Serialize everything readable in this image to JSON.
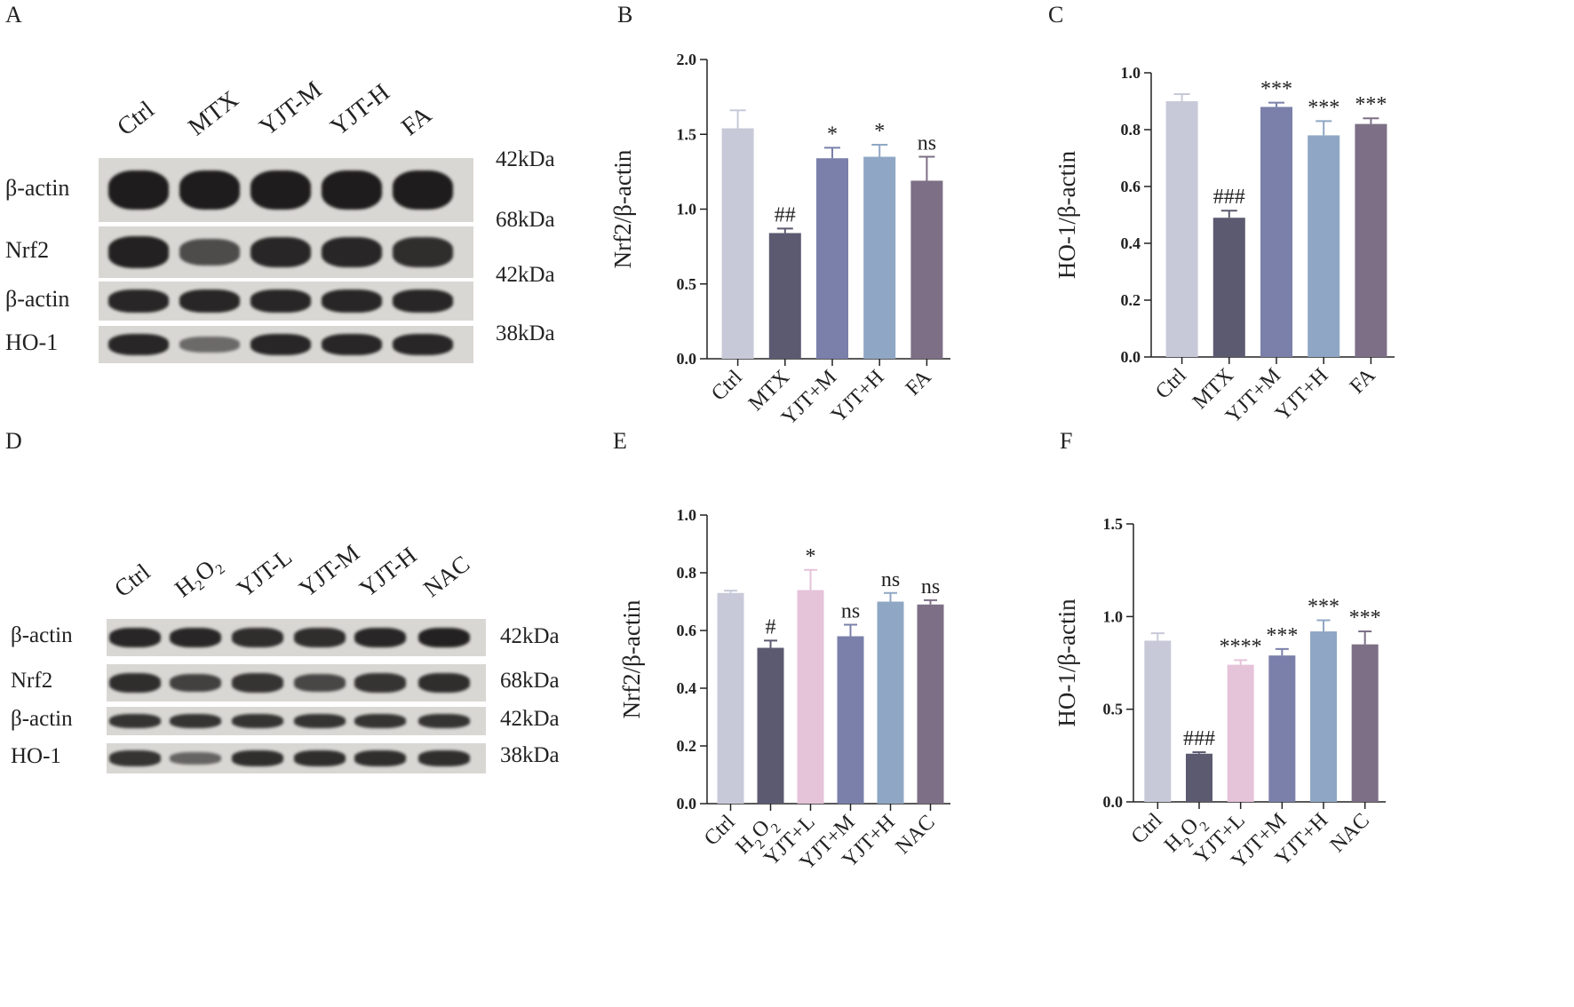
{
  "colors": {
    "ctrl": "#c8c9d8",
    "model": "#5c5a70",
    "yjt_l": "#e5c3d9",
    "yjt_m": "#7a80aa",
    "yjt_h": "#8fa7c4",
    "pos": "#7d6f86",
    "blot_bg": "#d9d7d3",
    "band": "#1e1c1c"
  },
  "panels": {
    "A": "A",
    "B": "B",
    "C": "C",
    "D": "D",
    "E": "E",
    "F": "F"
  },
  "blot_A": {
    "lanes": [
      "Ctrl",
      "MTX",
      "YJT-M",
      "YJT-H",
      "FA"
    ],
    "rows": [
      {
        "label": "β-actin",
        "kda": "42kDa",
        "intensity": [
          1,
          1,
          1,
          1,
          1
        ]
      },
      {
        "label": "Nrf2",
        "kda": "68kDa",
        "intensity": [
          0.95,
          0.6,
          0.9,
          0.9,
          0.85
        ]
      },
      {
        "label": "β-actin",
        "kda": "42kDa",
        "intensity": [
          0.9,
          0.9,
          0.9,
          0.9,
          0.9
        ]
      },
      {
        "label": "HO-1",
        "kda": "38kDa",
        "intensity": [
          0.9,
          0.35,
          0.9,
          0.9,
          0.9
        ]
      }
    ]
  },
  "blot_D": {
    "lanes": [
      "Ctrl",
      "H₂O₂",
      "YJT-L",
      "YJT-M",
      "YJT-H",
      "NAC"
    ],
    "rows": [
      {
        "label": "β-actin",
        "kda": "42kDa",
        "intensity": [
          0.9,
          0.9,
          0.85,
          0.85,
          0.9,
          0.95
        ]
      },
      {
        "label": "Nrf2",
        "kda": "68kDa",
        "intensity": [
          0.85,
          0.7,
          0.8,
          0.65,
          0.8,
          0.85
        ]
      },
      {
        "label": "β-actin",
        "kda": "42kDa",
        "intensity": [
          0.8,
          0.8,
          0.8,
          0.8,
          0.8,
          0.8
        ]
      },
      {
        "label": "HO-1",
        "kda": "38kDa",
        "intensity": [
          0.8,
          0.4,
          0.85,
          0.85,
          0.85,
          0.85
        ]
      }
    ]
  },
  "chart_data": [
    {
      "panel": "B",
      "type": "bar",
      "ylabel": "Nrf2/β-actin",
      "ylim": [
        0,
        2.0
      ],
      "yticks": [
        0.0,
        0.5,
        1.0,
        1.5,
        2.0
      ],
      "ytick_labels": [
        "0.0",
        "0.5",
        "1.0",
        "1.5",
        "2.0"
      ],
      "categories": [
        "Ctrl",
        "MTX",
        "YJT+M",
        "YJT+H",
        "FA"
      ],
      "values": [
        1.54,
        0.84,
        1.34,
        1.35,
        1.19
      ],
      "errors": [
        0.12,
        0.03,
        0.07,
        0.08,
        0.16
      ],
      "annotations": [
        "",
        "##",
        "*",
        "*",
        "ns"
      ],
      "color_keys": [
        "ctrl",
        "model",
        "yjt_m",
        "yjt_h",
        "pos"
      ]
    },
    {
      "panel": "C",
      "type": "bar",
      "ylabel": "HO-1/β-actin",
      "ylim": [
        0,
        1.0
      ],
      "yticks": [
        0.0,
        0.2,
        0.4,
        0.6,
        0.8,
        1.0
      ],
      "ytick_labels": [
        "0.0",
        "0.2",
        "0.4",
        "0.6",
        "0.8",
        "1.0"
      ],
      "categories": [
        "Ctrl",
        "MTX",
        "YJT+M",
        "YJT+H",
        "FA"
      ],
      "values": [
        0.9,
        0.49,
        0.88,
        0.78,
        0.82
      ],
      "errors": [
        0.025,
        0.025,
        0.015,
        0.05,
        0.02
      ],
      "annotations": [
        "",
        "###",
        "***",
        "***",
        "***"
      ],
      "color_keys": [
        "ctrl",
        "model",
        "yjt_m",
        "yjt_h",
        "pos"
      ]
    },
    {
      "panel": "E",
      "type": "bar",
      "ylabel": "Nrf2/β-actin",
      "ylim": [
        0,
        1.0
      ],
      "yticks": [
        0.0,
        0.2,
        0.4,
        0.6,
        0.8,
        1.0
      ],
      "ytick_labels": [
        "0.0",
        "0.2",
        "0.4",
        "0.6",
        "0.8",
        "1.0"
      ],
      "categories": [
        "Ctrl",
        "H2O2",
        "YJT+L",
        "YJT+M",
        "YJT+H",
        "NAC"
      ],
      "values": [
        0.73,
        0.54,
        0.74,
        0.58,
        0.7,
        0.69
      ],
      "errors": [
        0.008,
        0.025,
        0.07,
        0.04,
        0.03,
        0.015
      ],
      "annotations": [
        "",
        "#",
        "*",
        "ns",
        "ns",
        "ns"
      ],
      "color_keys": [
        "ctrl",
        "model",
        "yjt_l",
        "yjt_m",
        "yjt_h",
        "pos"
      ]
    },
    {
      "panel": "F",
      "type": "bar",
      "ylabel": "HO-1/β-actin",
      "ylim": [
        0,
        1.5
      ],
      "yticks": [
        0.0,
        0.5,
        1.0,
        1.5
      ],
      "ytick_labels": [
        "0.0",
        "0.5",
        "1.0",
        "1.5"
      ],
      "categories": [
        "Ctrl",
        "H2O2",
        "YJT+L",
        "YJT+M",
        "YJT+H",
        "NAC"
      ],
      "values": [
        0.87,
        0.26,
        0.74,
        0.79,
        0.92,
        0.85
      ],
      "errors": [
        0.04,
        0.008,
        0.025,
        0.035,
        0.06,
        0.07
      ],
      "annotations": [
        "",
        "###",
        "****",
        "***",
        "***",
        "***"
      ],
      "color_keys": [
        "ctrl",
        "model",
        "yjt_l",
        "yjt_m",
        "yjt_h",
        "pos"
      ]
    }
  ]
}
